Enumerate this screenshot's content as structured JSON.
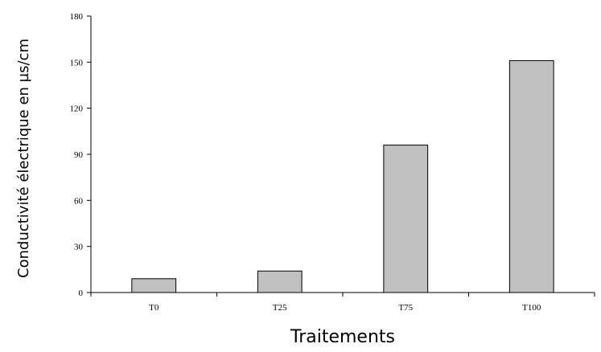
{
  "chart_data": {
    "type": "bar",
    "categories": [
      "T0",
      "T25",
      "T75",
      "T100"
    ],
    "values": [
      9,
      14,
      96,
      151
    ],
    "xlabel": "Traitements",
    "ylabel": "Conductivité électrique en µs/cm",
    "ylim": [
      0,
      180
    ],
    "yticks": [
      "0",
      "30",
      "60",
      "90",
      "120",
      "150",
      "180"
    ],
    "grid": false,
    "legend": "none",
    "colors": {
      "bar_fill": "#c0c0c0",
      "bar_stroke": "#000000",
      "axis": "#000000",
      "background": "#ffffff"
    }
  }
}
